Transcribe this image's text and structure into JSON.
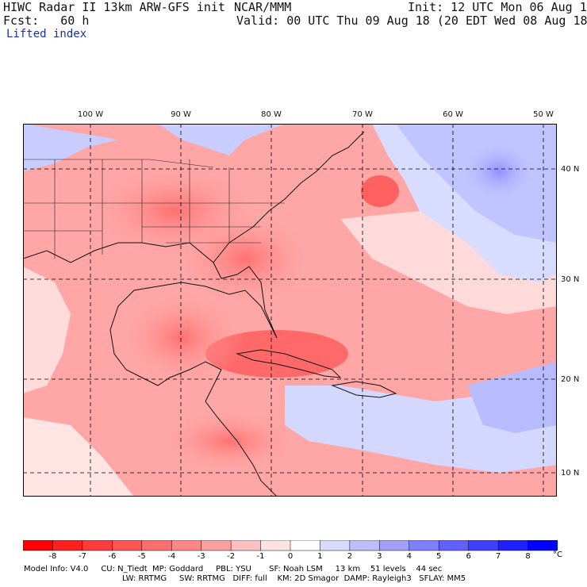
{
  "header": {
    "line1_left": "HIWC Radar II 13km ARW-GFS init",
    "line1_mid": "NCAR/MMM",
    "line1_right": "Init: 12 UTC Mon 06 Aug 18",
    "line2_left": "Fcst:   60 h",
    "line2_right": "Valid: 00 UTC Thu 09 Aug 18 (20 EDT Wed 08 Aug 18)",
    "field_name": "Lifted index"
  },
  "map": {
    "lon_labels": [
      "100 W",
      "90 W",
      "80 W",
      "70 W",
      "60 W",
      "50 W"
    ],
    "lat_labels": [
      "40 N",
      "30 N",
      "20 N",
      "10 N"
    ],
    "grid_style": "dashed"
  },
  "colorbar": {
    "ticks": [
      "-8",
      "-7",
      "-6",
      "-5",
      "-4",
      "-3",
      "-2",
      "-1",
      "0",
      "1",
      "2",
      "3",
      "4",
      "5",
      "6",
      "7",
      "8"
    ],
    "unit": "°C",
    "colors": [
      "#ff0000",
      "#ff2020",
      "#ff3c3c",
      "#ff5555",
      "#ff6e6e",
      "#ff8787",
      "#ffa0a0",
      "#ffc0c0",
      "#ffe2e2",
      "#ffffff",
      "#dadaff",
      "#bebeff",
      "#a0a0ff",
      "#8080ff",
      "#6060ff",
      "#4040ff",
      "#2020ff",
      "#0000ff"
    ]
  },
  "footer": {
    "line1": "Model Info: V4.0     CU: N_Tiedt  MP: Goddard     PBL: YSU       SF: Noah LSM     13 km    51 levels    44 sec",
    "line2": "LW: RRTMG     SW: RRTMG   DIFF: full    KM: 2D Smagor  DAMP: Rayleigh3   SFLAY: MM5"
  }
}
